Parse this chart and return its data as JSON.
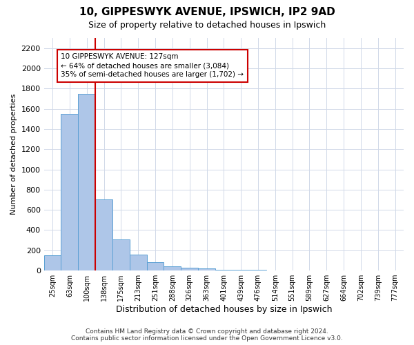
{
  "title1": "10, GIPPESWYK AVENUE, IPSWICH, IP2 9AD",
  "title2": "Size of property relative to detached houses in Ipswich",
  "xlabel": "Distribution of detached houses by size in Ipswich",
  "ylabel": "Number of detached properties",
  "categories": [
    "25sqm",
    "63sqm",
    "100sqm",
    "138sqm",
    "175sqm",
    "213sqm",
    "251sqm",
    "288sqm",
    "326sqm",
    "363sqm",
    "401sqm",
    "439sqm",
    "476sqm",
    "514sqm",
    "551sqm",
    "589sqm",
    "627sqm",
    "664sqm",
    "702sqm",
    "739sqm",
    "777sqm"
  ],
  "values": [
    150,
    1550,
    1750,
    700,
    310,
    155,
    80,
    40,
    25,
    20,
    10,
    5,
    5,
    2,
    2,
    1,
    1,
    1,
    0,
    0,
    0
  ],
  "bar_color": "#aec6e8",
  "bar_edge_color": "#5a9fd4",
  "highlight_line_color": "#cc0000",
  "annotation_text": "10 GIPPESWYK AVENUE: 127sqm\n← 64% of detached houses are smaller (3,084)\n35% of semi-detached houses are larger (1,702) →",
  "annotation_box_color": "#ffffff",
  "annotation_box_edge": "#cc0000",
  "ylim": [
    0,
    2300
  ],
  "yticks": [
    0,
    200,
    400,
    600,
    800,
    1000,
    1200,
    1400,
    1600,
    1800,
    2000,
    2200
  ],
  "footnote": "Contains HM Land Registry data © Crown copyright and database right 2024.\nContains public sector information licensed under the Open Government Licence v3.0.",
  "bg_color": "#ffffff",
  "grid_color": "#d0d8e8"
}
